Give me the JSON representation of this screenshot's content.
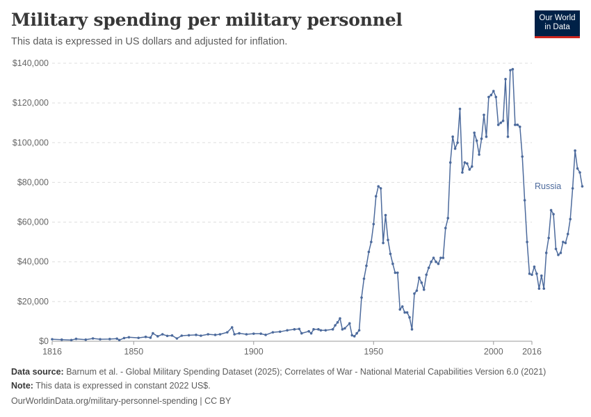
{
  "header": {
    "title": "Military spending per military personnel",
    "subtitle": "This data is expressed in US dollars and adjusted for inflation."
  },
  "logo": {
    "line1": "Our World",
    "line2": "in Data",
    "bg": "#002147",
    "accent": "#ce261e"
  },
  "footer": {
    "source_label": "Data source:",
    "source_text": "Barnum et al. - Global Military Spending Dataset (2025); Correlates of War - National Material Capabilities Version 6.0 (2021)",
    "note_label": "Note:",
    "note_text": "This data is expressed in constant 2022 US$.",
    "url": "OurWorldinData.org/military-personnel-spending | CC BY"
  },
  "chart_data": {
    "type": "line",
    "title": "Military spending per military personnel",
    "xlim": [
      1816,
      2016
    ],
    "ylim": [
      0,
      140000
    ],
    "x_ticks": [
      1816,
      1850,
      1900,
      1950,
      2000,
      2016
    ],
    "y_ticks": [
      {
        "value": 0,
        "label": "$0"
      },
      {
        "value": 20000,
        "label": "$20,000"
      },
      {
        "value": 40000,
        "label": "$40,000"
      },
      {
        "value": 60000,
        "label": "$60,000"
      },
      {
        "value": 80000,
        "label": "$80,000"
      },
      {
        "value": 100000,
        "label": "$100,000"
      },
      {
        "value": 120000,
        "label": "$120,000"
      },
      {
        "value": 140000,
        "label": "$140,000"
      }
    ],
    "grid": true,
    "series": [
      {
        "name": "Russia",
        "color": "#4c6a9c",
        "points": [
          [
            1816,
            1000
          ],
          [
            1820,
            800
          ],
          [
            1824,
            600
          ],
          [
            1826,
            1200
          ],
          [
            1830,
            800
          ],
          [
            1833,
            1400
          ],
          [
            1836,
            1000
          ],
          [
            1840,
            1100
          ],
          [
            1843,
            1300
          ],
          [
            1844,
            600
          ],
          [
            1846,
            1600
          ],
          [
            1848,
            2000
          ],
          [
            1852,
            1700
          ],
          [
            1855,
            2200
          ],
          [
            1857,
            1800
          ],
          [
            1858,
            4000
          ],
          [
            1860,
            2500
          ],
          [
            1862,
            3500
          ],
          [
            1864,
            2700
          ],
          [
            1866,
            2900
          ],
          [
            1868,
            1400
          ],
          [
            1870,
            2800
          ],
          [
            1873,
            3000
          ],
          [
            1876,
            3200
          ],
          [
            1878,
            2800
          ],
          [
            1881,
            3500
          ],
          [
            1884,
            3200
          ],
          [
            1886,
            3500
          ],
          [
            1889,
            4500
          ],
          [
            1891,
            7000
          ],
          [
            1892,
            3500
          ],
          [
            1894,
            4000
          ],
          [
            1897,
            3500
          ],
          [
            1900,
            3800
          ],
          [
            1903,
            3800
          ],
          [
            1905,
            3200
          ],
          [
            1908,
            4500
          ],
          [
            1911,
            4800
          ],
          [
            1914,
            5500
          ],
          [
            1917,
            6000
          ],
          [
            1919,
            6200
          ],
          [
            1920,
            4000
          ],
          [
            1923,
            5000
          ],
          [
            1924,
            4000
          ],
          [
            1925,
            6000
          ],
          [
            1927,
            6000
          ],
          [
            1928,
            5500
          ],
          [
            1930,
            5500
          ],
          [
            1933,
            6000
          ],
          [
            1934,
            8000
          ],
          [
            1935,
            9500
          ],
          [
            1936,
            11500
          ],
          [
            1937,
            6000
          ],
          [
            1938,
            6500
          ],
          [
            1940,
            9000
          ],
          [
            1941,
            3000
          ],
          [
            1942,
            2500
          ],
          [
            1943,
            4000
          ],
          [
            1944,
            5500
          ],
          [
            1945,
            22000
          ],
          [
            1946,
            31500
          ],
          [
            1947,
            38000
          ],
          [
            1948,
            45000
          ],
          [
            1949,
            50000
          ],
          [
            1950,
            59000
          ],
          [
            1951,
            73000
          ],
          [
            1952,
            78000
          ],
          [
            1953,
            77000
          ],
          [
            1954,
            49500
          ],
          [
            1955,
            63500
          ],
          [
            1956,
            51000
          ],
          [
            1957,
            44000
          ],
          [
            1958,
            39000
          ],
          [
            1959,
            34500
          ],
          [
            1960,
            34500
          ],
          [
            1961,
            16000
          ],
          [
            1962,
            17500
          ],
          [
            1963,
            14500
          ],
          [
            1964,
            14500
          ],
          [
            1965,
            12000
          ],
          [
            1966,
            6000
          ],
          [
            1967,
            24000
          ],
          [
            1968,
            25500
          ],
          [
            1969,
            32000
          ],
          [
            1970,
            29500
          ],
          [
            1971,
            26000
          ],
          [
            1972,
            33500
          ],
          [
            1973,
            37000
          ],
          [
            1974,
            40000
          ],
          [
            1975,
            42000
          ],
          [
            1976,
            40000
          ],
          [
            1977,
            39000
          ],
          [
            1978,
            42000
          ],
          [
            1979,
            42000
          ],
          [
            1980,
            57000
          ],
          [
            1981,
            62000
          ],
          [
            1982,
            90000
          ],
          [
            1983,
            103000
          ],
          [
            1984,
            97000
          ],
          [
            1985,
            100000
          ],
          [
            1986,
            117000
          ],
          [
            1987,
            85000
          ],
          [
            1988,
            90000
          ],
          [
            1989,
            89500
          ],
          [
            1990,
            86500
          ],
          [
            1991,
            88000
          ],
          [
            1992,
            105000
          ],
          [
            1993,
            101000
          ],
          [
            1994,
            94000
          ],
          [
            1995,
            102000
          ],
          [
            1996,
            114000
          ],
          [
            1997,
            103000
          ],
          [
            1998,
            123000
          ],
          [
            1999,
            124000
          ],
          [
            2000,
            126000
          ],
          [
            2001,
            123000
          ],
          [
            2002,
            109000
          ],
          [
            2003,
            110000
          ],
          [
            2004,
            111000
          ],
          [
            2005,
            132000
          ],
          [
            2006,
            103000
          ],
          [
            2007,
            136500
          ],
          [
            2008,
            137000
          ],
          [
            2009,
            109000
          ],
          [
            2010,
            109000
          ],
          [
            2011,
            108000
          ],
          [
            2012,
            93000
          ],
          [
            2013,
            71000
          ],
          [
            2014,
            50000
          ],
          [
            2015,
            34000
          ],
          [
            2016,
            33500
          ],
          [
            2017,
            37500
          ],
          [
            2018,
            34000
          ],
          [
            2019,
            26500
          ],
          [
            2020,
            33000
          ],
          [
            2021,
            26500
          ],
          [
            2022,
            44500
          ],
          [
            2023,
            52000
          ],
          [
            2024,
            66000
          ],
          [
            2025,
            64000
          ],
          [
            2026,
            46500
          ],
          [
            2027,
            43500
          ],
          [
            2028,
            44500
          ],
          [
            2029,
            50000
          ],
          [
            2030,
            49500
          ],
          [
            2031,
            54000
          ],
          [
            2032,
            61500
          ],
          [
            2033,
            77000
          ],
          [
            2034,
            96000
          ],
          [
            2035,
            87000
          ],
          [
            2036,
            85000
          ],
          [
            2037,
            78000
          ]
        ]
      }
    ]
  }
}
